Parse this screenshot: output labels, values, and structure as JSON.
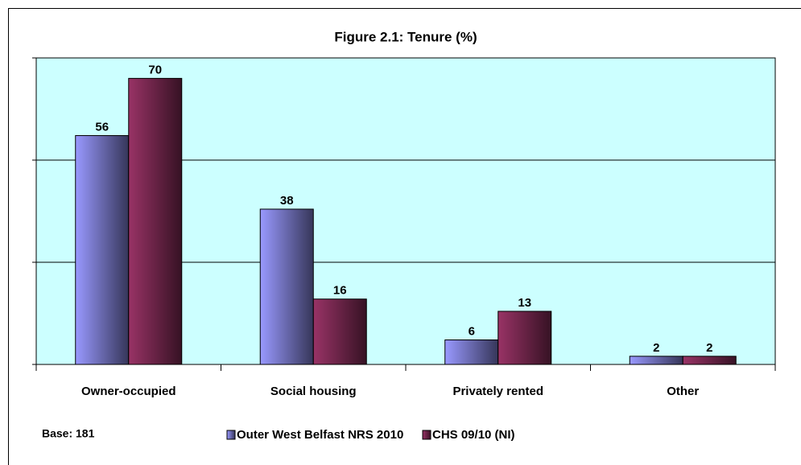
{
  "chart_data": {
    "type": "bar",
    "title": "Figure 2.1: Tenure (%)",
    "categories": [
      "Owner-occupied",
      "Social housing",
      "Privately rented",
      "Other"
    ],
    "series": [
      {
        "name": "Outer West Belfast NRS 2010",
        "color": "#9999ff",
        "values": [
          56,
          38,
          6,
          2
        ]
      },
      {
        "name": "CHS 09/10 (NI)",
        "color": "#993366",
        "values": [
          70,
          16,
          13,
          2
        ]
      }
    ],
    "ylim": [
      0,
      75
    ],
    "yticks": [
      0,
      25,
      50,
      75
    ],
    "grid": true,
    "annotation": "Base: 181",
    "legend": "bottom",
    "plot_background": "#ccffff"
  }
}
